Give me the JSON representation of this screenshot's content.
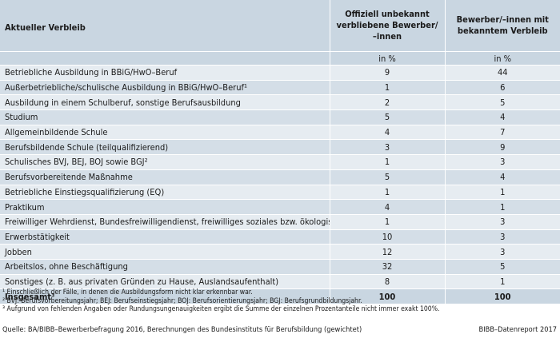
{
  "header": {
    "col1": "Aktueller Verbleib",
    "col2": "Offiziell unbekannt verbliebene Bewerber/ –innen",
    "col3": "Bewerber/–innen mit bekanntem Verbleib",
    "unit2": "in %",
    "unit3": "in %"
  },
  "rows": [
    {
      "label": "Betriebliche Ausbildung in BBiG/HwO–Beruf",
      "v1": "9",
      "v2": "44"
    },
    {
      "label": "Außerbetriebliche/schulische Ausbildung in BBiG/HwO–Beruf¹",
      "v1": "1",
      "v2": "6"
    },
    {
      "label": "Ausbildung in einem Schulberuf, sonstige Berufsausbildung",
      "v1": "2",
      "v2": "5"
    },
    {
      "label": "Studium",
      "v1": "5",
      "v2": "4"
    },
    {
      "label": "Allgemeinbildende Schule",
      "v1": "4",
      "v2": "7"
    },
    {
      "label": "Berufsbildende Schule (teilqualifizierend)",
      "v1": "3",
      "v2": "9"
    },
    {
      "label": "Schulisches BVJ, BEJ, BOJ sowie BGJ²",
      "v1": "1",
      "v2": "3"
    },
    {
      "label": "Berufsvorbereitende Maßnahme",
      "v1": "5",
      "v2": "4"
    },
    {
      "label": "Betriebliche Einstiegsqualifizierung (EQ)",
      "v1": "1",
      "v2": "1"
    },
    {
      "label": "Praktikum",
      "v1": "4",
      "v2": "1"
    },
    {
      "label": "Freiwilliger Wehrdienst, Bundesfreiwilligendienst, freiwilliges soziales bzw. ökologisches Jahr",
      "v1": "1",
      "v2": "3"
    },
    {
      "label": "Erwerbstätigkeit",
      "v1": "10",
      "v2": "3"
    },
    {
      "label": "Jobben",
      "v1": "12",
      "v2": "3"
    },
    {
      "label": "Arbeitslos, ohne Beschäftigung",
      "v1": "32",
      "v2": "5"
    },
    {
      "label": "Sonstiges (z. B. aus privaten Gründen zu Hause, Auslandsaufenthalt)",
      "v1": "8",
      "v2": "1"
    }
  ],
  "total": {
    "label": "Insgesamt³",
    "v1": "100",
    "v2": "100"
  },
  "footnotes": [
    "¹ Einschließlich der Fälle, in denen die Ausbildungsform nicht klar erkennbar war.",
    "² BVJ: Berufsvorbereitungsjahr; BEJ: Berufseinstiegsjahr; BOJ: Berufsorientierungsjahr; BGJ: Berufsgrundbildungsjahr.",
    "³ Aufgrund von fehlenden Angaben oder Rundungsungenauigkeiten ergibt die Summe der einzelnen Prozentanteile nicht immer exakt 100%."
  ],
  "source": "Quelle: BA/BIBB–Bewerberbefragung 2016, Berechnungen des Bundesinstituts für Berufsbildung (gewichtet)",
  "brand": "BIBB–Datenreport 2017",
  "colors": {
    "header_bg": "#c9d6e1",
    "row_light": "#e6ecf1",
    "row_dark": "#d4dee7"
  }
}
